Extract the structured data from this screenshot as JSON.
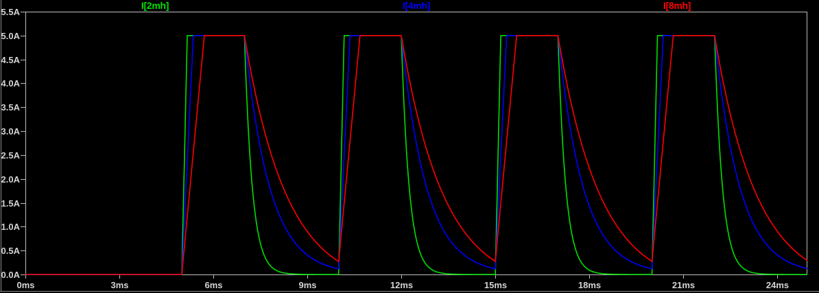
{
  "frame": {
    "background": "#000000",
    "plot_border_color": "#c0c0c0",
    "tick_color": "#c0c0c0",
    "text_color": "#d4d4d4",
    "window_edge_color": "#8c8c8c"
  },
  "chart_data": {
    "type": "line",
    "title": "",
    "xlabel": "",
    "ylabel": "",
    "grid": false,
    "legend_position": "top",
    "xlim_ms": [
      0,
      24.96
    ],
    "ylim_A": [
      0,
      5.5
    ],
    "x_ticks": [
      {
        "ms": 0,
        "label": "0ms"
      },
      {
        "ms": 3,
        "label": "3ms"
      },
      {
        "ms": 6,
        "label": "6ms"
      },
      {
        "ms": 9,
        "label": "9ms"
      },
      {
        "ms": 12,
        "label": "12ms"
      },
      {
        "ms": 15,
        "label": "15ms"
      },
      {
        "ms": 18,
        "label": "18ms"
      },
      {
        "ms": 21,
        "label": "21ms"
      },
      {
        "ms": 24,
        "label": "24ms"
      }
    ],
    "y_ticks": [
      {
        "value": 0.0,
        "label": "0.0A"
      },
      {
        "value": 0.5,
        "label": "0.5A"
      },
      {
        "value": 1.0,
        "label": "1.0A"
      },
      {
        "value": 1.5,
        "label": "1.5A"
      },
      {
        "value": 2.0,
        "label": "2.0A"
      },
      {
        "value": 2.5,
        "label": "2.5A"
      },
      {
        "value": 3.0,
        "label": "3.0A"
      },
      {
        "value": 3.5,
        "label": "3.5A"
      },
      {
        "value": 4.0,
        "label": "4.0A"
      },
      {
        "value": 4.5,
        "label": "4.5A"
      },
      {
        "value": 5.0,
        "label": "5.0A"
      },
      {
        "value": 5.5,
        "label": "5.5A"
      }
    ],
    "pulses": {
      "initial_A": 0,
      "plateau_A": 5.0,
      "on_ms": [
        5,
        10,
        15,
        20
      ],
      "off_ms": [
        7,
        12,
        17,
        22
      ]
    },
    "series": [
      {
        "name": "I[2mh]",
        "color": "#00e000",
        "rise_ms": 0.175,
        "tau_ms": 0.25,
        "decay_offset_A": 0,
        "residual_before_next_pulse_A": 0.02
      },
      {
        "name": "I[4mh]",
        "color": "#0000ff",
        "rise_ms": 0.37,
        "tau_ms": 0.8,
        "decay_offset_A": 0,
        "residual_before_next_pulse_A": 0.11
      },
      {
        "name": "I[8mh]",
        "color": "#ff0000",
        "rise_ms": 0.72,
        "tau_ms": 1.35,
        "decay_offset_A": 0.3,
        "residual_before_next_pulse_A": 0.26
      }
    ]
  }
}
